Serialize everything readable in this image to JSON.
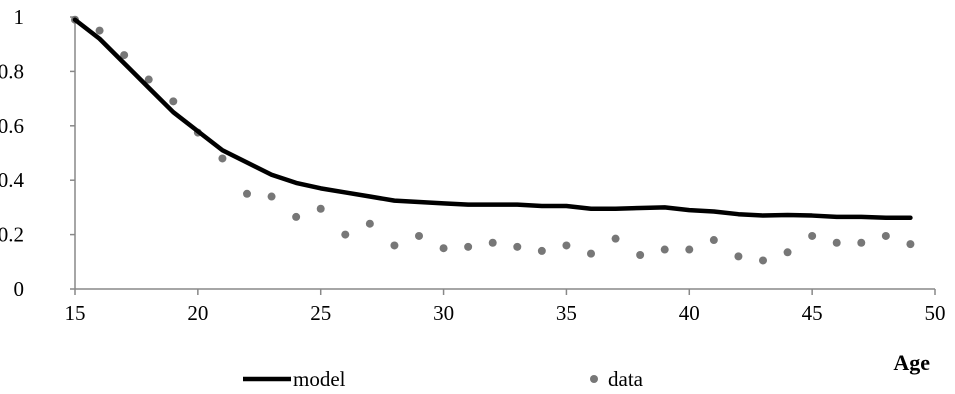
{
  "chart_data": {
    "type": "line",
    "title": "",
    "xlabel": "Age",
    "ylabel": "",
    "xlim": [
      15,
      50
    ],
    "ylim": [
      0,
      1
    ],
    "x_ticks": [
      15,
      20,
      25,
      30,
      35,
      40,
      45,
      50
    ],
    "y_ticks": [
      0,
      0.2,
      0.4,
      0.6,
      0.8,
      1
    ],
    "x_tick_labels": [
      "15",
      "20",
      "25",
      "30",
      "35",
      "40",
      "45",
      "50"
    ],
    "y_tick_labels": [
      "0",
      "0.2",
      "0.4",
      "0.6",
      "0.8",
      "1"
    ],
    "grid": false,
    "legend_position": "bottom",
    "series": [
      {
        "name": "model",
        "kind": "line",
        "color": "#000000",
        "x": [
          15,
          16,
          17,
          18,
          19,
          20,
          21,
          22,
          23,
          24,
          25,
          26,
          27,
          28,
          29,
          30,
          31,
          32,
          33,
          34,
          35,
          36,
          37,
          38,
          39,
          40,
          41,
          42,
          43,
          44,
          45,
          46,
          47,
          48,
          49
        ],
        "y": [
          0.99,
          0.92,
          0.83,
          0.74,
          0.65,
          0.58,
          0.51,
          0.465,
          0.42,
          0.39,
          0.37,
          0.355,
          0.34,
          0.325,
          0.32,
          0.315,
          0.31,
          0.31,
          0.31,
          0.305,
          0.305,
          0.295,
          0.295,
          0.298,
          0.3,
          0.29,
          0.285,
          0.275,
          0.27,
          0.272,
          0.27,
          0.265,
          0.265,
          0.262,
          0.262
        ]
      },
      {
        "name": "data",
        "kind": "scatter",
        "color": "#777777",
        "x": [
          15,
          16,
          17,
          18,
          19,
          20,
          21,
          22,
          23,
          24,
          25,
          26,
          27,
          28,
          29,
          30,
          31,
          32,
          33,
          34,
          35,
          36,
          37,
          38,
          39,
          40,
          41,
          42,
          43,
          44,
          45,
          46,
          47,
          48,
          49
        ],
        "y": [
          0.99,
          0.95,
          0.86,
          0.77,
          0.69,
          0.575,
          0.48,
          0.35,
          0.34,
          0.265,
          0.295,
          0.2,
          0.24,
          0.16,
          0.195,
          0.15,
          0.155,
          0.17,
          0.155,
          0.14,
          0.16,
          0.13,
          0.185,
          0.125,
          0.145,
          0.145,
          0.18,
          0.12,
          0.105,
          0.135,
          0.195,
          0.17,
          0.17,
          0.195,
          0.165
        ]
      }
    ]
  }
}
